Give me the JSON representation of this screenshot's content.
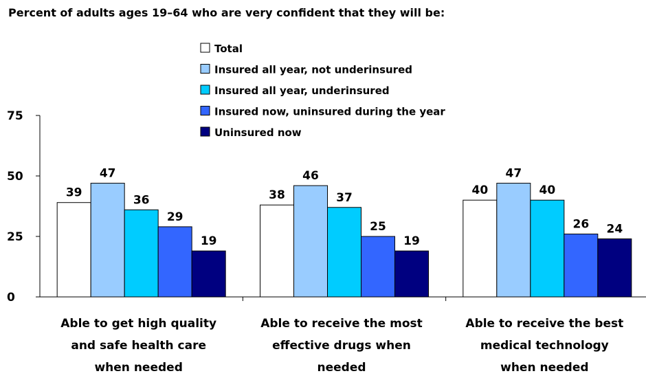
{
  "chart_data": {
    "type": "bar",
    "title": "Percent of adults ages 19–64 who are very confident that they will be:",
    "xlabel": "",
    "ylabel": "",
    "ylim": [
      0,
      75
    ],
    "yticks": [
      0,
      25,
      50,
      75
    ],
    "grid": false,
    "legend_position": "top-center",
    "categories": [
      [
        "Able to get high quality",
        "and safe health care",
        "when needed"
      ],
      [
        "Able to receive the most",
        "effective drugs when",
        "needed"
      ],
      [
        "Able to receive the best",
        "medical technology",
        "when needed"
      ]
    ],
    "series": [
      {
        "name": "Total",
        "color": "#ffffff",
        "values": [
          39,
          38,
          40
        ]
      },
      {
        "name": "Insured all year, not underinsured",
        "color": "#99ccff",
        "values": [
          47,
          46,
          47
        ]
      },
      {
        "name": "Insured all year, underinsured",
        "color": "#00ccff",
        "values": [
          36,
          37,
          40
        ]
      },
      {
        "name": "Insured now, uninsured during the year",
        "color": "#3366ff",
        "values": [
          29,
          25,
          26
        ]
      },
      {
        "name": "Uninsured now",
        "color": "#000080",
        "values": [
          19,
          19,
          24
        ]
      }
    ]
  }
}
